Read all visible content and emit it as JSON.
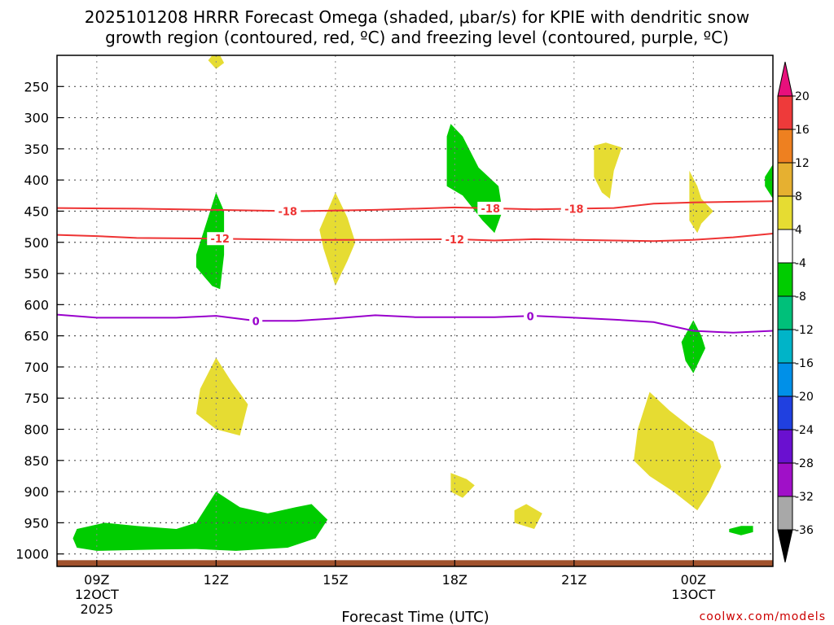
{
  "chart_data": {
    "type": "time-height cross section",
    "title_line1": "2025101208 HRRR Forecast Omega (shaded, μbar/s) for KPIE with dendritic snow",
    "title_line2": "growth region (contoured, red, ºC) and freezing level (contoured, purple, ºC)",
    "xlabel": "Forecast Time (UTC)",
    "credit": "coolwx.com/models",
    "x_ticks": [
      {
        "h": 9,
        "l1": "09Z",
        "l2": "12OCT",
        "l3": "2025"
      },
      {
        "h": 12,
        "l1": "12Z",
        "l2": "",
        "l3": ""
      },
      {
        "h": 15,
        "l1": "15Z",
        "l2": "",
        "l3": ""
      },
      {
        "h": 18,
        "l1": "18Z",
        "l2": "",
        "l3": ""
      },
      {
        "h": 21,
        "l1": "21Z",
        "l2": "",
        "l3": ""
      },
      {
        "h": 24,
        "l1": "00Z",
        "l2": "13OCT",
        "l3": ""
      }
    ],
    "x_range_hours": [
      8.0,
      26.0
    ],
    "y_levels_hPa": [
      250,
      300,
      350,
      400,
      450,
      500,
      550,
      600,
      650,
      700,
      750,
      800,
      850,
      900,
      950,
      1000
    ],
    "y_range_hPa": [
      200,
      1020
    ],
    "contours": [
      {
        "label": "-18",
        "color": "#ee3333",
        "label_at": [
          13.8,
          18.9,
          21.0
        ],
        "points": [
          [
            8.0,
            445
          ],
          [
            10,
            446
          ],
          [
            12,
            448
          ],
          [
            14,
            450
          ],
          [
            16,
            448
          ],
          [
            18,
            444
          ],
          [
            20,
            447
          ],
          [
            22,
            445
          ],
          [
            23,
            438
          ],
          [
            24,
            436
          ],
          [
            26,
            434
          ]
        ]
      },
      {
        "label": "-12",
        "color": "#ee3333",
        "label_at": [
          12.1,
          18.0
        ],
        "points": [
          [
            8.0,
            488
          ],
          [
            9,
            490
          ],
          [
            10,
            493
          ],
          [
            12,
            494
          ],
          [
            14,
            496
          ],
          [
            16,
            496
          ],
          [
            18,
            495
          ],
          [
            19,
            497
          ],
          [
            20,
            495
          ],
          [
            22,
            497
          ],
          [
            23,
            498
          ],
          [
            24,
            496
          ],
          [
            25,
            492
          ],
          [
            26,
            486
          ]
        ]
      },
      {
        "label": "0",
        "color": "#9900cc",
        "label_at": [
          13.0,
          19.9
        ],
        "points": [
          [
            8.0,
            616
          ],
          [
            9,
            621
          ],
          [
            10,
            621
          ],
          [
            11,
            621
          ],
          [
            12,
            618
          ],
          [
            13,
            626
          ],
          [
            14,
            626
          ],
          [
            15,
            622
          ],
          [
            16,
            617
          ],
          [
            17,
            620
          ],
          [
            18,
            620
          ],
          [
            19,
            620
          ],
          [
            20,
            618
          ],
          [
            21,
            621
          ],
          [
            22,
            624
          ],
          [
            23,
            628
          ],
          [
            24,
            642
          ],
          [
            25,
            645
          ],
          [
            26,
            642
          ]
        ]
      }
    ],
    "omega_regions": [
      {
        "value": 4,
        "color": "#e6dc32",
        "points": [
          [
            11.9,
            200
          ],
          [
            12.1,
            200
          ],
          [
            12.2,
            212
          ],
          [
            12.0,
            222
          ],
          [
            11.8,
            208
          ]
        ]
      },
      {
        "value": -8,
        "color": "#00cc00",
        "points": [
          [
            12.0,
            420
          ],
          [
            12.2,
            450
          ],
          [
            12.2,
            520
          ],
          [
            12.1,
            575
          ],
          [
            11.9,
            570
          ],
          [
            11.5,
            540
          ],
          [
            11.5,
            520
          ],
          [
            11.7,
            480
          ]
        ]
      },
      {
        "value": 4,
        "color": "#e6dc32",
        "points": [
          [
            15.0,
            420
          ],
          [
            15.3,
            460
          ],
          [
            15.5,
            500
          ],
          [
            15.3,
            530
          ],
          [
            15.0,
            570
          ],
          [
            14.9,
            550
          ],
          [
            14.7,
            510
          ],
          [
            14.6,
            480
          ],
          [
            14.8,
            450
          ]
        ]
      },
      {
        "value": -8,
        "color": "#00cc00",
        "points": [
          [
            17.9,
            310
          ],
          [
            18.2,
            330
          ],
          [
            18.6,
            380
          ],
          [
            19.1,
            410
          ],
          [
            19.2,
            450
          ],
          [
            19.0,
            485
          ],
          [
            18.7,
            465
          ],
          [
            18.2,
            425
          ],
          [
            17.8,
            410
          ],
          [
            17.8,
            360
          ],
          [
            17.8,
            330
          ]
        ]
      },
      {
        "value": 4,
        "color": "#e6dc32",
        "points": [
          [
            21.5,
            345
          ],
          [
            21.8,
            340
          ],
          [
            22.2,
            348
          ],
          [
            22.0,
            385
          ],
          [
            21.9,
            430
          ],
          [
            21.7,
            420
          ],
          [
            21.5,
            395
          ],
          [
            21.5,
            365
          ]
        ]
      },
      {
        "value": 4,
        "color": "#e6dc32",
        "points": [
          [
            23.9,
            385
          ],
          [
            24.1,
            410
          ],
          [
            24.2,
            430
          ],
          [
            24.5,
            450
          ],
          [
            24.2,
            470
          ],
          [
            24.1,
            485
          ],
          [
            23.9,
            465
          ],
          [
            23.9,
            440
          ]
        ]
      },
      {
        "value": -8,
        "color": "#00cc00",
        "points": [
          [
            26.0,
            375
          ],
          [
            26.0,
            430
          ],
          [
            25.8,
            410
          ],
          [
            25.8,
            395
          ]
        ]
      },
      {
        "value": -8,
        "color": "#00cc00",
        "points": [
          [
            24.0,
            625
          ],
          [
            24.2,
            650
          ],
          [
            24.3,
            670
          ],
          [
            24.0,
            710
          ],
          [
            23.8,
            690
          ],
          [
            23.7,
            660
          ]
        ]
      },
      {
        "value": 4,
        "color": "#e6dc32",
        "points": [
          [
            12.0,
            685
          ],
          [
            12.4,
            725
          ],
          [
            12.8,
            760
          ],
          [
            12.6,
            810
          ],
          [
            12.0,
            800
          ],
          [
            11.5,
            775
          ],
          [
            11.6,
            735
          ]
        ]
      },
      {
        "value": 4,
        "color": "#e6dc32",
        "points": [
          [
            22.9,
            740
          ],
          [
            23.4,
            770
          ],
          [
            24.0,
            800
          ],
          [
            24.5,
            820
          ],
          [
            24.7,
            860
          ],
          [
            24.4,
            900
          ],
          [
            24.1,
            930
          ],
          [
            23.5,
            900
          ],
          [
            22.9,
            875
          ],
          [
            22.5,
            850
          ],
          [
            22.6,
            800
          ]
        ]
      },
      {
        "value": 4,
        "color": "#e6dc32",
        "points": [
          [
            17.9,
            870
          ],
          [
            18.3,
            880
          ],
          [
            18.5,
            890
          ],
          [
            18.2,
            910
          ],
          [
            17.9,
            900
          ]
        ]
      },
      {
        "value": 4,
        "color": "#e6dc32",
        "points": [
          [
            19.5,
            930
          ],
          [
            19.8,
            920
          ],
          [
            20.2,
            935
          ],
          [
            20.0,
            960
          ],
          [
            19.5,
            950
          ]
        ]
      },
      {
        "value": -8,
        "color": "#00cc00",
        "points": [
          [
            25.2,
            955
          ],
          [
            25.5,
            955
          ],
          [
            25.5,
            965
          ],
          [
            25.2,
            970
          ],
          [
            24.9,
            965
          ],
          [
            24.9,
            960
          ]
        ]
      },
      {
        "value": -8,
        "color": "#00cc00",
        "points": [
          [
            8.5,
            960
          ],
          [
            9.2,
            950
          ],
          [
            10.0,
            955
          ],
          [
            11.0,
            960
          ],
          [
            11.5,
            950
          ],
          [
            12.0,
            900
          ],
          [
            12.6,
            925
          ],
          [
            13.3,
            935
          ],
          [
            14.0,
            925
          ],
          [
            14.4,
            920
          ],
          [
            14.8,
            945
          ],
          [
            14.5,
            975
          ],
          [
            13.8,
            990
          ],
          [
            12.5,
            995
          ],
          [
            11.5,
            992
          ],
          [
            10.5,
            993
          ],
          [
            9.0,
            995
          ],
          [
            8.5,
            990
          ],
          [
            8.4,
            975
          ]
        ]
      }
    ],
    "ground_band_top_hPa": 1010,
    "colorbar": {
      "labels": [
        "20",
        "16",
        "12",
        "8",
        "4",
        "-4",
        "-8",
        "-12",
        "-16",
        "-20",
        "-24",
        "-28",
        "-32",
        "-36"
      ],
      "colors": [
        "#e8107c",
        "#ee3a3a",
        "#ee8020",
        "#e6b030",
        "#e6dc32",
        "#ffffff",
        "#00cc00",
        "#00c07a",
        "#00b4c8",
        "#0090e8",
        "#2040e0",
        "#6a10d0",
        "#a010c8",
        "#a8a8a8",
        "#000000"
      ]
    }
  }
}
